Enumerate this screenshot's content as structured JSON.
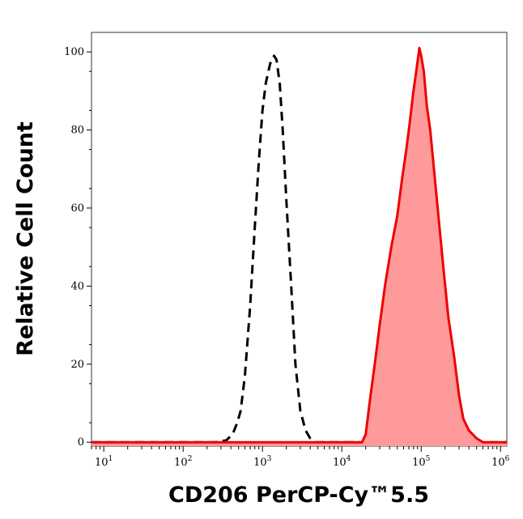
{
  "chart_data": {
    "type": "area",
    "xlabel": "CD206 PerCP-Cy™5.5",
    "ylabel": "Relative Cell Count",
    "x_scale": "log",
    "xlim": [
      7,
      1200000
    ],
    "ylim": [
      -1,
      105
    ],
    "y_ticks": [
      0,
      20,
      40,
      60,
      80,
      100
    ],
    "x_ticks": [
      {
        "value": 10,
        "base": "10",
        "exp": "1"
      },
      {
        "value": 100,
        "base": "10",
        "exp": "2"
      },
      {
        "value": 1000,
        "base": "10",
        "exp": "3"
      },
      {
        "value": 10000,
        "base": "10",
        "exp": "4"
      },
      {
        "value": 100000,
        "base": "10",
        "exp": "5"
      },
      {
        "value": 1000000,
        "base": "10",
        "exp": "6"
      }
    ],
    "grid": false,
    "series": [
      {
        "style": "dashed",
        "color": "#000000",
        "points": [
          [
            7,
            0
          ],
          [
            250,
            0
          ],
          [
            350,
            0.5
          ],
          [
            420,
            2
          ],
          [
            480,
            5
          ],
          [
            530,
            8
          ],
          [
            600,
            17
          ],
          [
            700,
            35
          ],
          [
            800,
            55
          ],
          [
            900,
            72
          ],
          [
            1000,
            85
          ],
          [
            1100,
            92
          ],
          [
            1250,
            97
          ],
          [
            1400,
            99
          ],
          [
            1500,
            98
          ],
          [
            1650,
            92
          ],
          [
            1800,
            80
          ],
          [
            2000,
            62
          ],
          [
            2300,
            40
          ],
          [
            2600,
            20
          ],
          [
            3000,
            8
          ],
          [
            3500,
            3
          ],
          [
            4000,
            1
          ],
          [
            4600,
            0
          ],
          [
            1200000,
            0
          ]
        ]
      },
      {
        "style": "filled",
        "color": "#ee0000",
        "fill": "#ff9a9a",
        "points": [
          [
            7,
            0
          ],
          [
            18000,
            0
          ],
          [
            20000,
            2
          ],
          [
            23000,
            12
          ],
          [
            26000,
            20
          ],
          [
            30000,
            30
          ],
          [
            35000,
            40
          ],
          [
            42000,
            50
          ],
          [
            50000,
            58
          ],
          [
            58000,
            68
          ],
          [
            65000,
            75
          ],
          [
            72000,
            82
          ],
          [
            80000,
            90
          ],
          [
            88000,
            96
          ],
          [
            95000,
            101
          ],
          [
            100000,
            99
          ],
          [
            108000,
            95
          ],
          [
            118000,
            86
          ],
          [
            130000,
            80
          ],
          [
            145000,
            70
          ],
          [
            165000,
            58
          ],
          [
            190000,
            45
          ],
          [
            220000,
            32
          ],
          [
            260000,
            22
          ],
          [
            300000,
            12
          ],
          [
            340000,
            6
          ],
          [
            400000,
            3
          ],
          [
            500000,
            1
          ],
          [
            600000,
            0
          ],
          [
            1200000,
            0
          ]
        ]
      }
    ]
  }
}
